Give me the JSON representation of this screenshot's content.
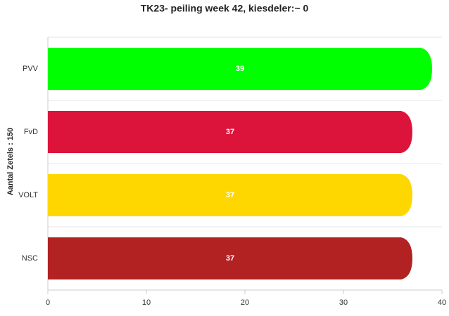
{
  "chart_data": {
    "type": "bar",
    "orientation": "horizontal",
    "title": "TK23- peiling week 42, kiesdeler:~ 0",
    "y_label": "Aantal Zetels : 150",
    "categories": [
      "PVV",
      "FvD",
      "VOLT",
      "NSC"
    ],
    "values": [
      39,
      37,
      37,
      37
    ],
    "colors": [
      "#00ff00",
      "#dc143c",
      "#ffd700",
      "#b22222"
    ],
    "xlim": [
      0,
      40
    ],
    "xticks": [
      0,
      10,
      20,
      30,
      40
    ],
    "grid": true
  }
}
